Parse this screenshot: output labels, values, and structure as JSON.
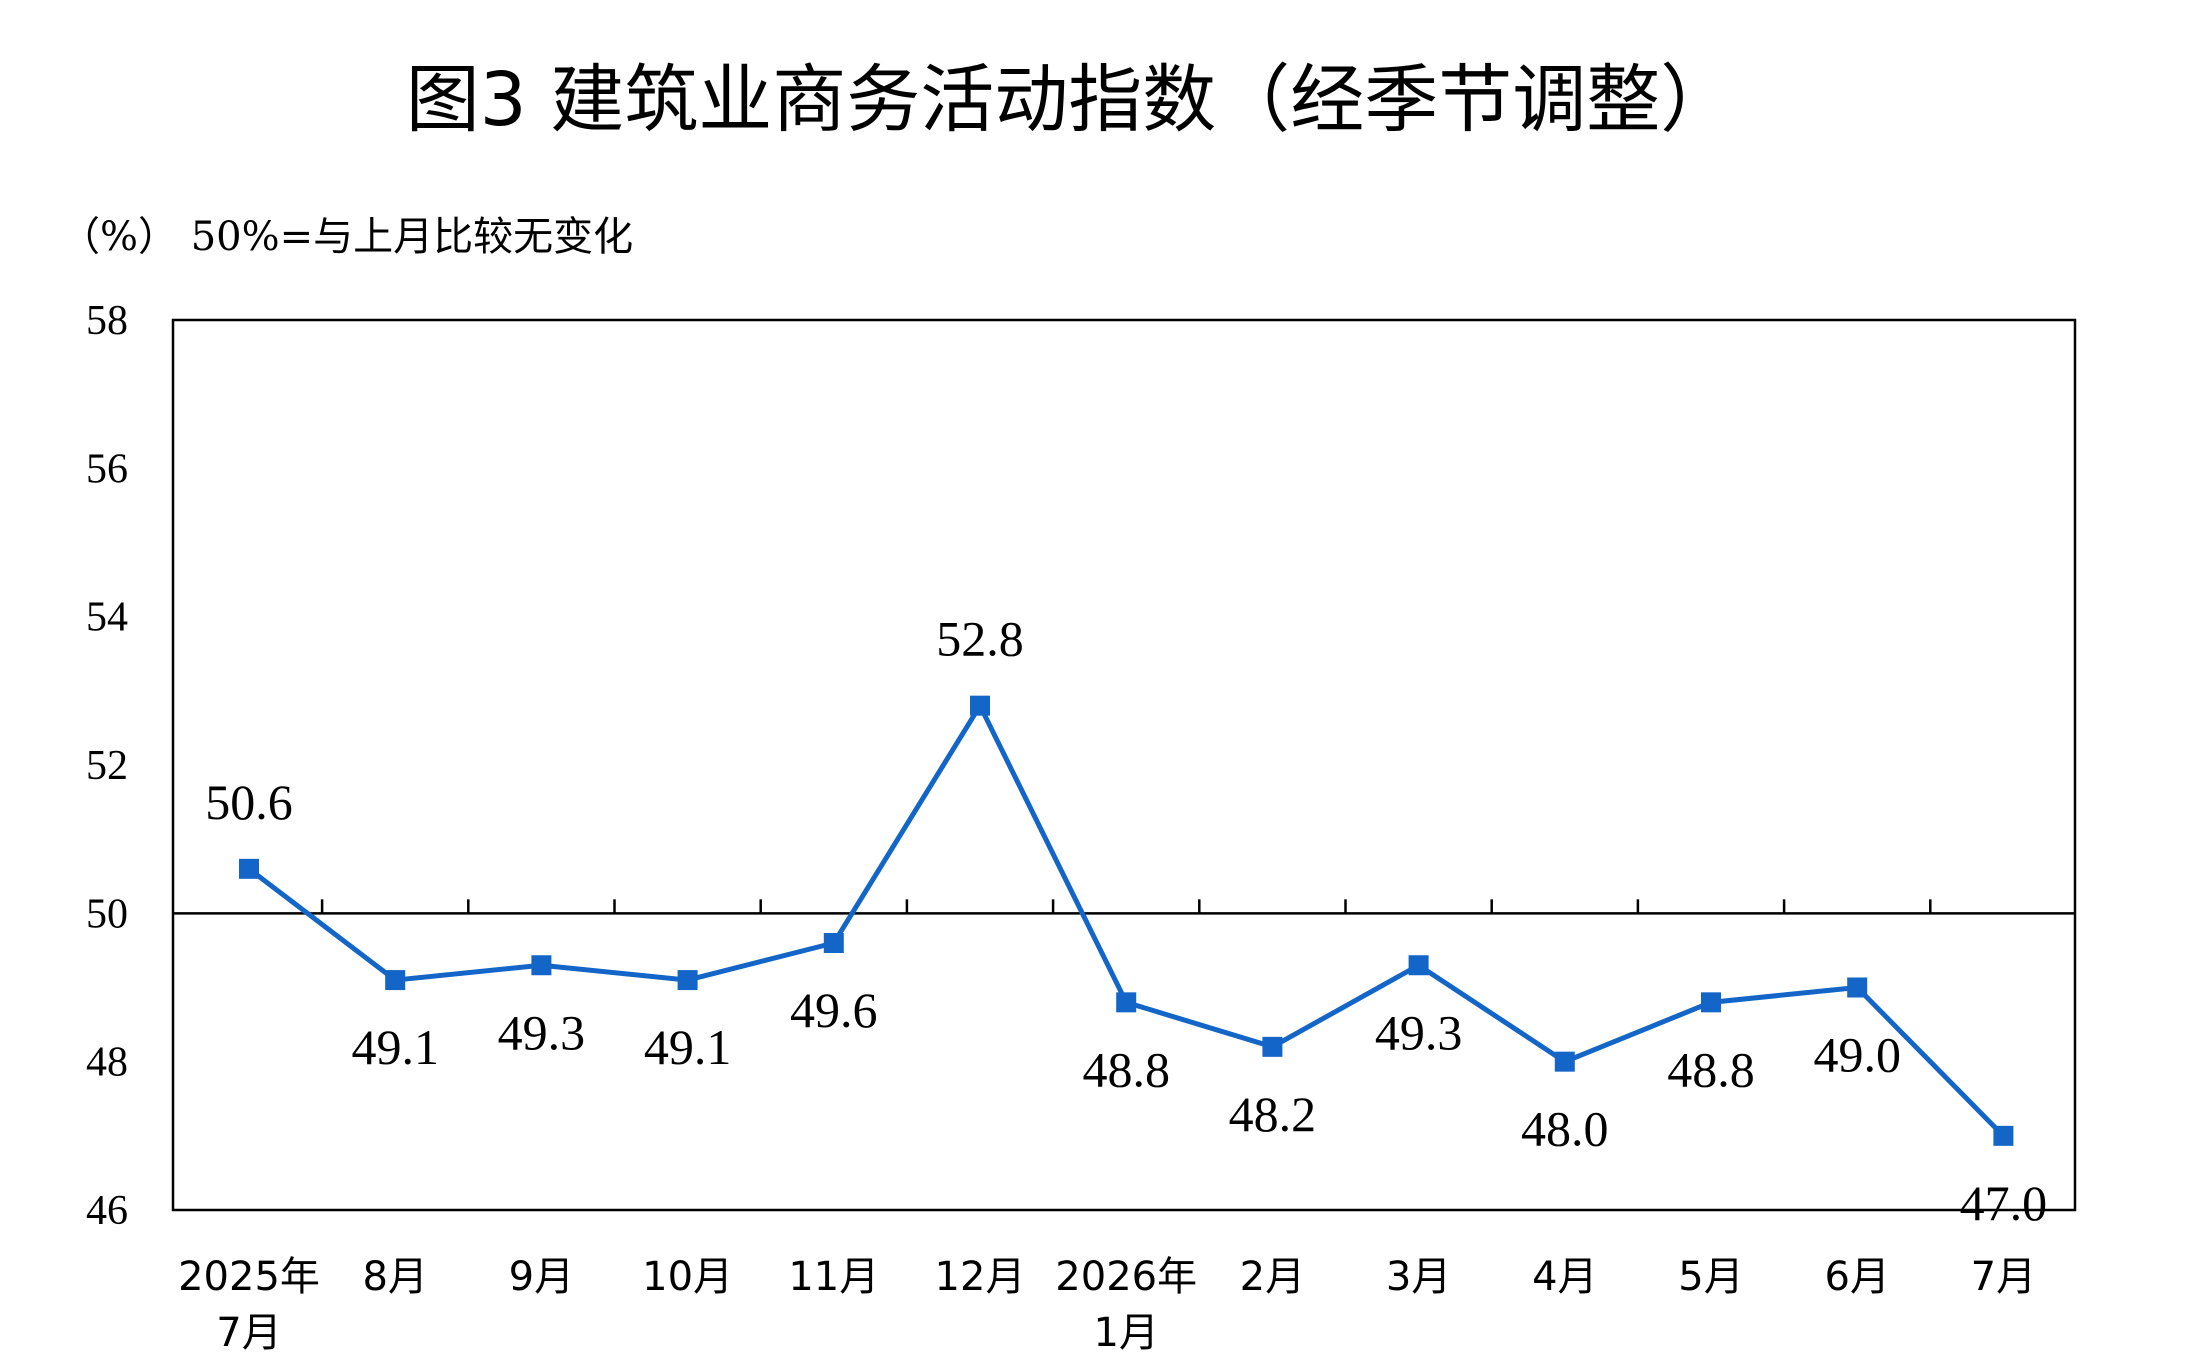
{
  "chart_data": {
    "type": "line",
    "title": "图3  建筑业商务活动指数（经季节调整）",
    "unit_label": "（%）  50%=与上月比较无变化",
    "categories": [
      [
        "2025年",
        "7月"
      ],
      [
        "8月"
      ],
      [
        "9月"
      ],
      [
        "10月"
      ],
      [
        "11月"
      ],
      [
        "12月"
      ],
      [
        "2026年",
        "1月"
      ],
      [
        "2月"
      ],
      [
        "3月"
      ],
      [
        "4月"
      ],
      [
        "5月"
      ],
      [
        "6月"
      ],
      [
        "7月"
      ]
    ],
    "series": [
      {
        "values": [
          50.6,
          49.1,
          49.3,
          49.1,
          49.6,
          52.8,
          48.8,
          48.2,
          49.3,
          48.0,
          48.8,
          49.0,
          47.0
        ],
        "data_labels": [
          "50.6",
          "49.1",
          "49.3",
          "49.1",
          "49.6",
          "52.8",
          "48.8",
          "48.2",
          "49.3",
          "48.0",
          "48.8",
          "49.0",
          "47.0"
        ],
        "color": "#1366c8"
      }
    ],
    "yticks": [
      "46",
      "48",
      "50",
      "52",
      "54",
      "56",
      "58"
    ],
    "ylim": [
      46,
      58
    ],
    "reference_line": 50,
    "grid": false,
    "legend": "none"
  }
}
